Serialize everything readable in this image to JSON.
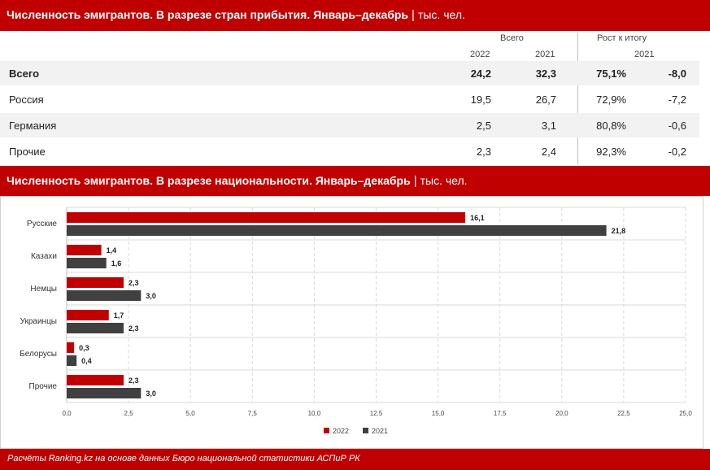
{
  "header1": {
    "title": "Численность эмигрантов. В разрезе стран прибытия. Январь–декабрь",
    "sep": "|",
    "unit": "тыс. чел."
  },
  "table": {
    "group_total": "Всего",
    "group_growth": "Рост к итогу",
    "col_2022": "2022",
    "col_2021": "2021",
    "col_growth_year": "2021",
    "rows": [
      {
        "name": "Всего",
        "v2022": "24,2",
        "v2021": "32,3",
        "share": "75,1%",
        "growth": "-8,0"
      },
      {
        "name": "Россия",
        "v2022": "19,5",
        "v2021": "26,7",
        "share": "72,9%",
        "growth": "-7,2"
      },
      {
        "name": "Германия",
        "v2022": "2,5",
        "v2021": "3,1",
        "share": "80,8%",
        "growth": "-0,6"
      },
      {
        "name": "Прочие",
        "v2022": "2,3",
        "v2021": "2,4",
        "share": "92,3%",
        "growth": "-0,2"
      }
    ]
  },
  "header2": {
    "title": "Численность эмигрантов. В разрезе национальности. Январь–декабрь",
    "sep": "|",
    "unit": "тыс. чел."
  },
  "chart_data": {
    "type": "bar",
    "orientation": "horizontal",
    "categories": [
      "Русские",
      "Казахи",
      "Немцы",
      "Украинцы",
      "Белорусы",
      "Прочие"
    ],
    "series": [
      {
        "name": "2022",
        "color": "#c00000",
        "values": [
          16.1,
          1.4,
          2.3,
          1.7,
          0.3,
          2.3
        ],
        "labels": [
          "16,1",
          "1,4",
          "2,3",
          "1,7",
          "0,3",
          "2,3"
        ]
      },
      {
        "name": "2021",
        "color": "#404040",
        "values": [
          21.8,
          1.6,
          3.0,
          2.3,
          0.4,
          3.0
        ],
        "labels": [
          "21,8",
          "1,6",
          "3,0",
          "2,3",
          "0,4",
          "3,0"
        ]
      }
    ],
    "xlim": [
      0,
      25
    ],
    "xticks": [
      "0,0",
      "2,5",
      "5,0",
      "7,5",
      "10,0",
      "12,5",
      "15,0",
      "17,5",
      "20,0",
      "22,5",
      "25,0"
    ],
    "grid": true,
    "legend_position": "bottom"
  },
  "footer": {
    "text": "Расчёты Ranking.kz на основе данных Бюро национальной статистики АСПиР РК"
  }
}
